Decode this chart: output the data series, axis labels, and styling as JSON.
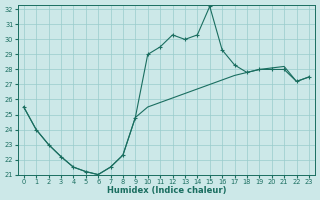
{
  "xlabel": "Humidex (Indice chaleur)",
  "bg_color": "#cce8e8",
  "line_color": "#1a6e60",
  "grid_color": "#99cccc",
  "x_upper": [
    0,
    1,
    2,
    3,
    4,
    5,
    6,
    7,
    8,
    9,
    10,
    11,
    12,
    13,
    14,
    15,
    16,
    17,
    18,
    19,
    20,
    21,
    22,
    23
  ],
  "y_upper": [
    25.5,
    24.0,
    23.0,
    22.2,
    21.5,
    21.2,
    21.0,
    21.5,
    22.3,
    24.8,
    29.0,
    29.5,
    30.3,
    30.0,
    30.3,
    32.2,
    29.3,
    28.3,
    27.8,
    28.0,
    28.0,
    28.0,
    27.2,
    27.5
  ],
  "x_lower": [
    0,
    1,
    2,
    3,
    4,
    5,
    6,
    7,
    8,
    9,
    10,
    11,
    12,
    13,
    14,
    15,
    16,
    17,
    18,
    19,
    20,
    21,
    22,
    23
  ],
  "y_lower": [
    25.5,
    24.0,
    23.0,
    22.2,
    21.5,
    21.2,
    21.0,
    21.5,
    22.3,
    24.8,
    25.5,
    25.8,
    26.1,
    26.4,
    26.7,
    27.0,
    27.3,
    27.6,
    27.8,
    28.0,
    28.1,
    28.2,
    27.2,
    27.5
  ],
  "ylim": [
    21,
    32
  ],
  "xlim": [
    -0.5,
    23.5
  ],
  "yticks": [
    21,
    22,
    23,
    24,
    25,
    26,
    27,
    28,
    29,
    30,
    31,
    32
  ],
  "xticks": [
    0,
    1,
    2,
    3,
    4,
    5,
    6,
    7,
    8,
    9,
    10,
    11,
    12,
    13,
    14,
    15,
    16,
    17,
    18,
    19,
    20,
    21,
    22,
    23
  ],
  "xlabel_fontsize": 6.0,
  "tick_fontsize": 4.8
}
